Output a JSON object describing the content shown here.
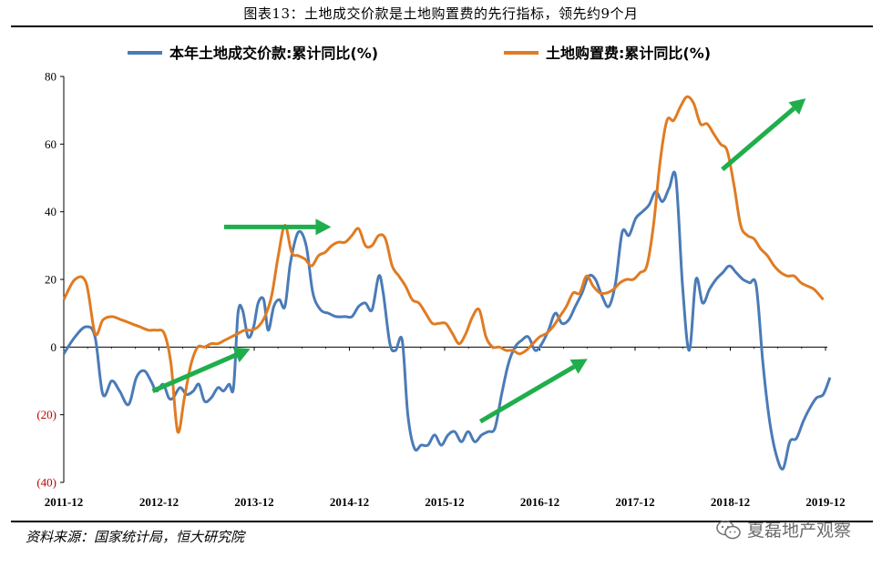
{
  "caption": "图表13：土地成交价款是土地购置费的先行指标，领先约9个月",
  "source": "资料来源：国家统计局，恒大研究院",
  "watermark": "夏磊地产观察",
  "colors": {
    "land_price": "#4a7bb7",
    "land_purchase": "#e07b22",
    "arrow": "#1fae4b",
    "negative_tick": "#c00000"
  },
  "chart_data": {
    "type": "line",
    "ylim": [
      -40,
      80
    ],
    "y_ticks": [
      {
        "value": 80,
        "label": "80"
      },
      {
        "value": 60,
        "label": "60"
      },
      {
        "value": 40,
        "label": "40"
      },
      {
        "value": 20,
        "label": "20"
      },
      {
        "value": 0,
        "label": "0"
      },
      {
        "value": -20,
        "label": "(20)"
      },
      {
        "value": -40,
        "label": "(40)"
      }
    ],
    "x_ticks": [
      {
        "t": 0,
        "label": "2011-12"
      },
      {
        "t": 12,
        "label": "2012-12"
      },
      {
        "t": 24,
        "label": "2013-12"
      },
      {
        "t": 36,
        "label": "2014-12"
      },
      {
        "t": 48,
        "label": "2015-12"
      },
      {
        "t": 60,
        "label": "2016-12"
      },
      {
        "t": 72,
        "label": "2017-12"
      },
      {
        "t": 84,
        "label": "2018-12"
      },
      {
        "t": 96,
        "label": "2019-12"
      }
    ],
    "legend_position": "top",
    "series": [
      {
        "name": "本年土地成交价款:累计同比(%)",
        "color": "#4a7bb7",
        "points": [
          [
            0,
            -2
          ],
          [
            1,
            3
          ],
          [
            2,
            6
          ],
          [
            2.8,
            3
          ],
          [
            3.5,
            -14
          ],
          [
            4.3,
            -10
          ],
          [
            5,
            -13
          ],
          [
            5.8,
            -17
          ],
          [
            6.5,
            -9
          ],
          [
            7.2,
            -7
          ],
          [
            7.8,
            -10
          ],
          [
            8.3,
            -13
          ],
          [
            8.9,
            -11
          ],
          [
            9.4,
            -15
          ],
          [
            9.8,
            -15
          ],
          [
            10.4,
            -12
          ],
          [
            11,
            -14
          ],
          [
            11.6,
            -13
          ],
          [
            12.1,
            -11
          ],
          [
            12.6,
            -16
          ],
          [
            13.2,
            -15
          ],
          [
            13.8,
            -12
          ],
          [
            14.3,
            -13
          ],
          [
            14.8,
            -11
          ],
          [
            15.2,
            -12
          ],
          [
            15.6,
            10
          ],
          [
            16,
            11
          ],
          [
            16.5,
            3
          ],
          [
            17,
            6
          ],
          [
            17.4,
            13
          ],
          [
            17.9,
            14
          ],
          [
            18.3,
            5
          ],
          [
            18.8,
            12
          ],
          [
            19.3,
            14
          ],
          [
            19.8,
            12
          ],
          [
            20.3,
            25
          ],
          [
            21,
            34
          ],
          [
            21.7,
            30
          ],
          [
            22.3,
            16
          ],
          [
            23,
            11
          ],
          [
            23.7,
            10
          ],
          [
            24.4,
            9
          ],
          [
            25.2,
            9
          ],
          [
            25.8,
            9
          ],
          [
            26.4,
            12
          ],
          [
            27,
            13
          ],
          [
            27.6,
            11
          ],
          [
            28.2,
            21
          ],
          [
            28.6,
            16
          ],
          [
            29.2,
            1
          ],
          [
            29.7,
            -1
          ],
          [
            30.3,
            2
          ],
          [
            30.8,
            -20
          ],
          [
            31.4,
            -30
          ],
          [
            32,
            -29
          ],
          [
            32.6,
            -29
          ],
          [
            33.2,
            -26
          ],
          [
            33.8,
            -29
          ],
          [
            34.4,
            -26
          ],
          [
            35,
            -25
          ],
          [
            35.6,
            -28
          ],
          [
            36.2,
            -25
          ],
          [
            36.8,
            -28
          ],
          [
            37.4,
            -26
          ],
          [
            38,
            -25
          ],
          [
            38.6,
            -24
          ],
          [
            39.2,
            -14
          ],
          [
            39.8,
            -5
          ],
          [
            40.4,
            0
          ],
          [
            41,
            2
          ],
          [
            41.6,
            3
          ],
          [
            42.2,
            -1
          ],
          [
            42.8,
            1
          ],
          [
            43.4,
            5
          ],
          [
            44,
            10
          ],
          [
            44.6,
            7
          ],
          [
            45.2,
            8
          ],
          [
            45.8,
            12
          ],
          [
            46.4,
            16
          ],
          [
            47,
            21
          ],
          [
            47.6,
            20
          ],
          [
            48.2,
            15
          ],
          [
            48.8,
            12
          ],
          [
            49.4,
            19
          ],
          [
            50,
            34
          ],
          [
            50.6,
            33
          ],
          [
            51.2,
            38
          ],
          [
            51.8,
            40
          ],
          [
            52.4,
            42
          ],
          [
            53,
            46
          ],
          [
            53.6,
            43
          ],
          [
            54.2,
            47
          ],
          [
            54.8,
            50
          ],
          [
            55.4,
            18
          ],
          [
            56,
            -1
          ],
          [
            56.6,
            20
          ],
          [
            57.2,
            13
          ],
          [
            57.8,
            17
          ],
          [
            58.4,
            20
          ],
          [
            59,
            22
          ],
          [
            59.6,
            24
          ],
          [
            60.2,
            22
          ],
          [
            60.8,
            20
          ],
          [
            61.4,
            19
          ],
          [
            62,
            18
          ],
          [
            62.6,
            -5
          ],
          [
            63.2,
            -22
          ],
          [
            63.8,
            -32
          ],
          [
            64.4,
            -36
          ],
          [
            65,
            -28
          ],
          [
            65.6,
            -27
          ],
          [
            66.2,
            -22
          ],
          [
            66.8,
            -18
          ],
          [
            67.4,
            -15
          ],
          [
            68,
            -14
          ],
          [
            68.6,
            -9
          ]
        ]
      },
      {
        "name": "土地购置费:累计同比(%)",
        "color": "#e07b22",
        "points": [
          [
            0,
            14
          ],
          [
            1,
            20
          ],
          [
            2,
            19
          ],
          [
            2.8,
            4
          ],
          [
            3.5,
            8
          ],
          [
            4.3,
            9
          ],
          [
            5.2,
            8
          ],
          [
            6,
            7
          ],
          [
            6.8,
            6
          ],
          [
            7.6,
            5
          ],
          [
            8.3,
            5
          ],
          [
            9,
            4
          ],
          [
            9.6,
            -5
          ],
          [
            10.2,
            -25
          ],
          [
            10.8,
            -15
          ],
          [
            11.4,
            -5
          ],
          [
            12,
            0
          ],
          [
            12.6,
            0
          ],
          [
            13.2,
            1
          ],
          [
            13.8,
            1
          ],
          [
            14.4,
            2
          ],
          [
            15,
            3
          ],
          [
            15.6,
            4
          ],
          [
            16.2,
            5
          ],
          [
            16.8,
            5
          ],
          [
            17.4,
            6
          ],
          [
            18,
            9
          ],
          [
            18.6,
            15
          ],
          [
            19.2,
            27
          ],
          [
            19.8,
            36
          ],
          [
            20.4,
            28
          ],
          [
            21,
            27
          ],
          [
            21.6,
            26
          ],
          [
            22.2,
            24
          ],
          [
            22.8,
            27
          ],
          [
            23.4,
            28
          ],
          [
            24,
            30
          ],
          [
            24.6,
            31
          ],
          [
            25.2,
            31
          ],
          [
            25.8,
            33
          ],
          [
            26.4,
            35
          ],
          [
            27,
            30
          ],
          [
            27.6,
            30
          ],
          [
            28.2,
            33
          ],
          [
            28.8,
            32
          ],
          [
            29.4,
            24
          ],
          [
            30,
            21
          ],
          [
            30.6,
            18
          ],
          [
            31.2,
            14
          ],
          [
            31.8,
            13
          ],
          [
            32.4,
            10
          ],
          [
            33,
            7
          ],
          [
            33.6,
            7
          ],
          [
            34.2,
            7
          ],
          [
            34.8,
            4
          ],
          [
            35.4,
            1
          ],
          [
            36,
            4
          ],
          [
            36.6,
            9
          ],
          [
            37.2,
            11
          ],
          [
            37.8,
            3
          ],
          [
            38.4,
            0
          ],
          [
            39,
            0
          ],
          [
            39.6,
            -1
          ],
          [
            40.2,
            -1
          ],
          [
            40.8,
            -2
          ],
          [
            41.4,
            -1
          ],
          [
            42,
            1
          ],
          [
            42.6,
            3
          ],
          [
            43.2,
            4
          ],
          [
            43.8,
            6
          ],
          [
            44.4,
            9
          ],
          [
            45,
            12
          ],
          [
            45.6,
            16
          ],
          [
            46.2,
            16
          ],
          [
            46.8,
            21
          ],
          [
            47.4,
            18
          ],
          [
            48,
            16
          ],
          [
            48.6,
            16
          ],
          [
            49.2,
            17
          ],
          [
            49.8,
            19
          ],
          [
            50.4,
            20
          ],
          [
            51,
            20
          ],
          [
            51.6,
            22
          ],
          [
            52.2,
            24
          ],
          [
            52.8,
            36
          ],
          [
            53.4,
            55
          ],
          [
            54,
            67
          ],
          [
            54.6,
            67
          ],
          [
            55.2,
            71
          ],
          [
            55.8,
            74
          ],
          [
            56.4,
            72
          ],
          [
            57,
            66
          ],
          [
            57.6,
            66
          ],
          [
            58.2,
            63
          ],
          [
            58.8,
            60
          ],
          [
            59.4,
            58
          ],
          [
            60,
            48
          ],
          [
            60.6,
            36
          ],
          [
            61.2,
            33
          ],
          [
            61.8,
            32
          ],
          [
            62.4,
            29
          ],
          [
            63,
            27
          ],
          [
            63.6,
            24
          ],
          [
            64.2,
            22
          ],
          [
            64.8,
            21
          ],
          [
            65.4,
            21
          ],
          [
            66,
            19
          ],
          [
            66.6,
            18
          ],
          [
            67.2,
            17
          ],
          [
            68,
            14
          ]
        ]
      }
    ],
    "annotations": [
      {
        "type": "arrow",
        "from": [
          -13,
          6.5
        ],
        "to": [
          -1,
          15.8
        ]
      },
      {
        "type": "arrow",
        "from": [
          34.5,
          15.2
        ],
        "to": [
          35.5,
          27.5
        ]
      },
      {
        "type": "arrow",
        "from": [
          -22,
          27.5
        ],
        "to": [
          -4,
          45
        ]
      },
      {
        "type": "arrow",
        "from": [
          52,
          65
        ],
        "to": [
          72,
          80.5
        ]
      }
    ]
  }
}
